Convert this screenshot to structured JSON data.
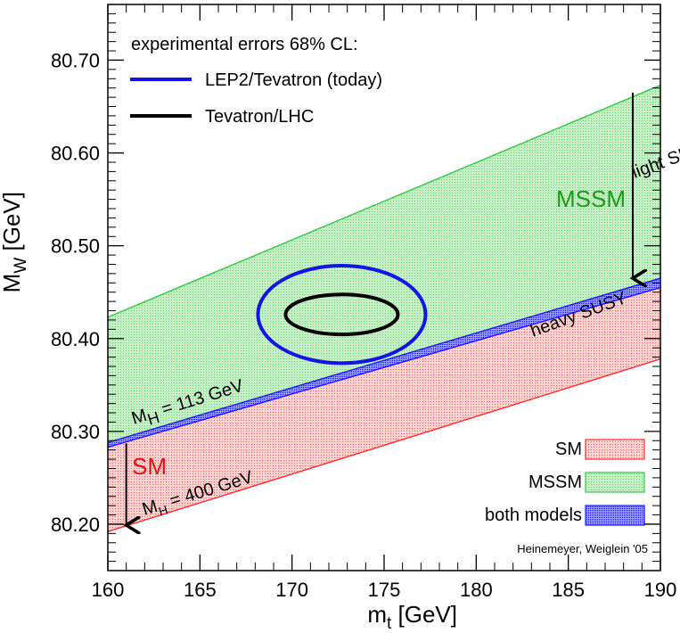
{
  "chart_data": {
    "type": "area",
    "xlabel_main": "m",
    "xlabel_sub": "t",
    "xlabel_unit": " [GeV]",
    "ylabel_main": "M",
    "ylabel_sub": "W",
    "ylabel_unit": " [GeV]",
    "xlim": [
      160,
      190
    ],
    "ylim": [
      80.15,
      80.76
    ],
    "x_ticks": [
      "160",
      "165",
      "170",
      "175",
      "180",
      "185",
      "190"
    ],
    "y_ticks": [
      "80.20",
      "80.30",
      "80.40",
      "80.50",
      "80.60",
      "80.70"
    ],
    "bands": [
      {
        "name": "MSSM",
        "color": "#2ecc40",
        "lower": [
          [
            160,
            80.288
          ],
          [
            190,
            80.465
          ]
        ],
        "upper": [
          [
            160,
            80.423
          ],
          [
            190,
            80.673
          ]
        ]
      },
      {
        "name": "SM",
        "color": "#ff2a2a",
        "lower": [
          [
            160,
            80.192
          ],
          [
            190,
            80.378
          ]
        ],
        "upper": [
          [
            160,
            80.283
          ],
          [
            190,
            80.455
          ]
        ]
      },
      {
        "name": "both models",
        "color": "#1a1aff",
        "lower": [
          [
            160,
            80.283
          ],
          [
            190,
            80.455
          ]
        ],
        "upper": [
          [
            160,
            80.288
          ],
          [
            190,
            80.465
          ]
        ]
      }
    ],
    "ellipses": [
      {
        "name": "LEP2/Tevatron (today)",
        "color": "#1414e6",
        "cx": 172.7,
        "cy": 80.426,
        "rx": 4.55,
        "ry": 0.0525
      },
      {
        "name": "Tevatron/LHC",
        "color": "#000000",
        "cx": 172.7,
        "cy": 80.426,
        "rx": 3.05,
        "ry": 0.0215
      }
    ],
    "legend_title": "experimental errors 68% CL:",
    "legend_lines": [
      {
        "label": "LEP2/Tevatron (today)",
        "color": "#1414e6"
      },
      {
        "label": "Tevatron/LHC",
        "color": "#000000"
      }
    ],
    "legend_boxes": [
      {
        "label": "SM",
        "color": "#ff2a2a",
        "text_color": "#e01010"
      },
      {
        "label": "MSSM",
        "color": "#2ecc40",
        "text_color": "#1a9a1a"
      },
      {
        "label": "both models",
        "color": "#1a1aff",
        "text_color": "#1414e6"
      }
    ],
    "annotations": {
      "light_susy": "light SUSY",
      "heavy_susy": "heavy SUSY",
      "mssm": "MSSM",
      "sm": "SM",
      "mh113_main": "M",
      "mh113_sub": "H",
      "mh113_value": " = 113 GeV",
      "mh400_main": "M",
      "mh400_sub": "H",
      "mh400_value": " = 400 GeV",
      "credit": "Heinemeyer, Weiglein '05"
    },
    "arrows": [
      {
        "name": "mssm-arrow",
        "x": 188.5,
        "y_from": 80.665,
        "y_to": 80.465
      },
      {
        "name": "sm-arrow",
        "x": 161.0,
        "y_from": 80.287,
        "y_to": 80.199
      }
    ],
    "grid": false,
    "legend_placement": "top-left (lines) and bottom-right (bands)"
  }
}
